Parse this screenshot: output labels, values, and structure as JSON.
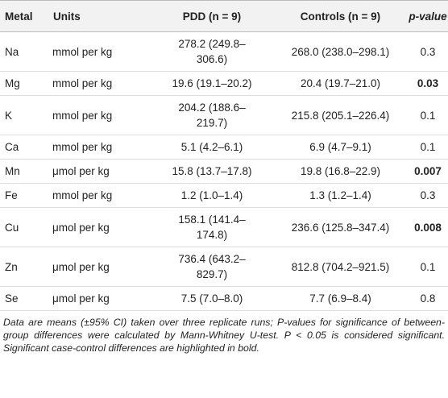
{
  "table": {
    "header": [
      "Metal",
      "Units",
      "PDD (n = 9)",
      "Controls (n = 9)",
      "p-value"
    ],
    "rows": [
      {
        "metal": "Na",
        "units": "mmol per kg",
        "pdd": "278.2 (249.8–306.6)",
        "controls": "268.0 (238.0–298.1)",
        "p": "0.3",
        "p_bold": false
      },
      {
        "metal": "Mg",
        "units": "mmol per kg",
        "pdd": "19.6 (19.1–20.2)",
        "controls": "20.4 (19.7–21.0)",
        "p": "0.03",
        "p_bold": true
      },
      {
        "metal": "K",
        "units": "mmol per kg",
        "pdd": "204.2 (188.6–219.7)",
        "controls": "215.8 (205.1–226.4)",
        "p": "0.1",
        "p_bold": false
      },
      {
        "metal": "Ca",
        "units": "mmol per kg",
        "pdd": "5.1 (4.2–6.1)",
        "controls": "6.9 (4.7–9.1)",
        "p": "0.1",
        "p_bold": false
      },
      {
        "metal": "Mn",
        "units": "μmol per kg",
        "pdd": "15.8 (13.7–17.8)",
        "controls": "19.8 (16.8–22.9)",
        "p": "0.007",
        "p_bold": true
      },
      {
        "metal": "Fe",
        "units": "mmol per kg",
        "pdd": "1.2 (1.0–1.4)",
        "controls": "1.3 (1.2–1.4)",
        "p": "0.3",
        "p_bold": false
      },
      {
        "metal": "Cu",
        "units": "μmol per kg",
        "pdd": "158.1 (141.4–174.8)",
        "controls": "236.6 (125.8–347.4)",
        "p": "0.008",
        "p_bold": true
      },
      {
        "metal": "Zn",
        "units": "μmol per kg",
        "pdd": "736.4 (643.2–829.7)",
        "controls": "812.8 (704.2–921.5)",
        "p": "0.1",
        "p_bold": false
      },
      {
        "metal": "Se",
        "units": "μmol per kg",
        "pdd": "7.5 (7.0–8.0)",
        "controls": "7.7 (6.9–8.4)",
        "p": "0.8",
        "p_bold": false
      }
    ],
    "footnote": "Data are means (±95% CI) taken over three replicate runs; P-values for significance of between-group differences were calculated by Mann-Whitney U-test. P < 0.05 is considered significant. Significant case-control differences are highlighted in bold."
  }
}
